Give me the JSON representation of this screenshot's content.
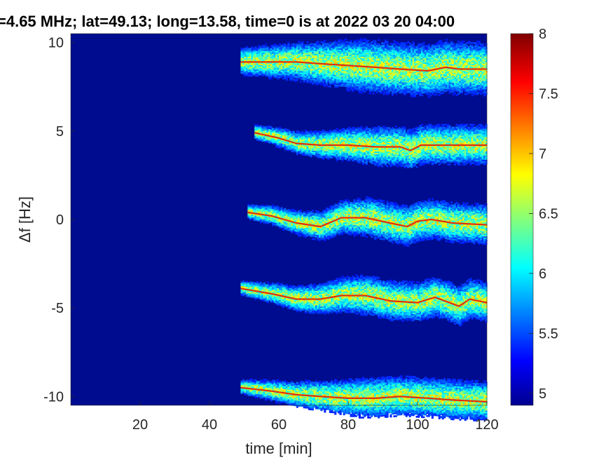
{
  "chart_data": {
    "type": "heatmap",
    "title": "=4.65 MHz;  lat=49.13; long=13.58, time=0 is at 2022 03 20 04:00",
    "xlabel": "time [min]",
    "ylabel": "Δf [Hz]",
    "xlim": [
      0,
      120
    ],
    "ylim": [
      -10.5,
      10.5
    ],
    "x_ticks": [
      20,
      40,
      60,
      80,
      100,
      120
    ],
    "x_tick_labels": [
      "20",
      "40",
      "60",
      "80",
      "100",
      "120"
    ],
    "y_ticks": [
      -10,
      -5,
      0,
      5,
      10
    ],
    "y_tick_labels": [
      "-10",
      "-5",
      "0",
      "5",
      "10"
    ],
    "colorbar": {
      "colormap": "jet",
      "range": [
        4.9,
        8
      ],
      "ticks": [
        5,
        5.5,
        6,
        6.5,
        7,
        7.5,
        8
      ],
      "tick_labels": [
        "5",
        "5.5",
        "6",
        "6.5",
        "7",
        "7.5",
        "8"
      ]
    },
    "background_level": 4.9,
    "series": [
      {
        "start_min": 49,
        "points": [
          [
            49,
            8.9
          ],
          [
            60,
            8.9
          ],
          [
            65,
            8.9
          ],
          [
            72,
            8.8
          ],
          [
            80,
            8.7
          ],
          [
            88,
            8.6
          ],
          [
            95,
            8.5
          ],
          [
            103,
            8.4
          ],
          [
            108,
            8.6
          ],
          [
            112,
            8.5
          ],
          [
            120,
            8.5
          ]
        ]
      },
      {
        "start_min": 53,
        "points": [
          [
            53,
            4.9
          ],
          [
            60,
            4.6
          ],
          [
            65,
            4.3
          ],
          [
            72,
            4.2
          ],
          [
            80,
            4.2
          ],
          [
            88,
            4.1
          ],
          [
            95,
            4.1
          ],
          [
            98,
            3.9
          ],
          [
            101,
            4.2
          ],
          [
            110,
            4.2
          ],
          [
            120,
            4.2
          ]
        ]
      },
      {
        "start_min": 51,
        "points": [
          [
            51,
            0.4
          ],
          [
            58,
            0.2
          ],
          [
            65,
            -0.2
          ],
          [
            72,
            -0.4
          ],
          [
            78,
            0.1
          ],
          [
            85,
            0.1
          ],
          [
            92,
            -0.2
          ],
          [
            97,
            -0.4
          ],
          [
            100,
            -0.1
          ],
          [
            104,
            0.0
          ],
          [
            110,
            -0.2
          ],
          [
            120,
            -0.3
          ]
        ]
      },
      {
        "start_min": 49,
        "points": [
          [
            49,
            -3.9
          ],
          [
            58,
            -4.2
          ],
          [
            65,
            -4.5
          ],
          [
            72,
            -4.5
          ],
          [
            78,
            -4.3
          ],
          [
            85,
            -4.3
          ],
          [
            92,
            -4.6
          ],
          [
            100,
            -4.7
          ],
          [
            105,
            -4.4
          ],
          [
            112,
            -4.9
          ],
          [
            115,
            -4.5
          ],
          [
            120,
            -4.7
          ]
        ]
      },
      {
        "start_min": 49,
        "points": [
          [
            49,
            -9.5
          ],
          [
            58,
            -9.7
          ],
          [
            65,
            -9.9
          ],
          [
            72,
            -10.0
          ],
          [
            80,
            -10.1
          ],
          [
            88,
            -10.1
          ],
          [
            95,
            -10.0
          ],
          [
            103,
            -10.1
          ],
          [
            110,
            -10.2
          ],
          [
            120,
            -10.3
          ]
        ]
      }
    ]
  }
}
